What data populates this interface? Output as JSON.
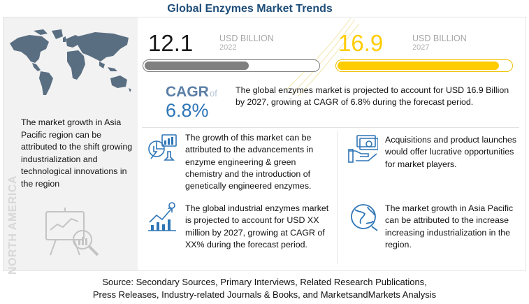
{
  "title": "Global Enzymes Market Trends",
  "metrics": [
    {
      "value": "12.1",
      "unit": "USD BILLION",
      "year": "2022",
      "bar_fill_fraction": 0.6,
      "color": "#808080"
    },
    {
      "value": "16.9",
      "unit": "USD BILLION",
      "year": "2027",
      "bar_fill_fraction": 0.93,
      "color": "#ffcc00"
    }
  ],
  "cagr": {
    "label": "CAGR",
    "of": "of",
    "value": "6.8%",
    "description": "The global enzymes market is projected to account for USD 16.9 Billion by 2027, growing at CAGR of 6.8% during the forecast period."
  },
  "left_panel": {
    "text": "The market growth in Asia Pacific region can be attributed to the shift growing industrialization and technological innovations in the region",
    "region_label": "NORTH AMERICA"
  },
  "facts": [
    {
      "icon": "chemistry-chart-icon",
      "text": "The growth of this market can be attributed to the advancements in enzyme engineering & green chemistry and the introduction of genetically engineered enzymes."
    },
    {
      "icon": "growth-chart-icon",
      "text": "The global industrial enzymes market is projected to account for USD XX million by 2027, growing at CAGR of XX% during the forecast period."
    },
    {
      "icon": "money-hand-icon",
      "text": "Acquisitions and product launches would offer lucrative opportunities for market players."
    },
    {
      "icon": "globe-icon",
      "text": "The market growth in Asia Pacific can be attributed to the increase increasing industrialization in the region."
    }
  ],
  "source": {
    "line1": "Source: Secondary Sources, Primary Interviews, Related Research Publications,",
    "line2": "Press Releases, Industry-related Journals & Books, and MarketsandMarkets Analysis"
  },
  "colors": {
    "title": "#1f4e79",
    "accent_blue": "#2e75b6",
    "accent_yellow": "#ffcc00",
    "map": "#5a6e82"
  }
}
